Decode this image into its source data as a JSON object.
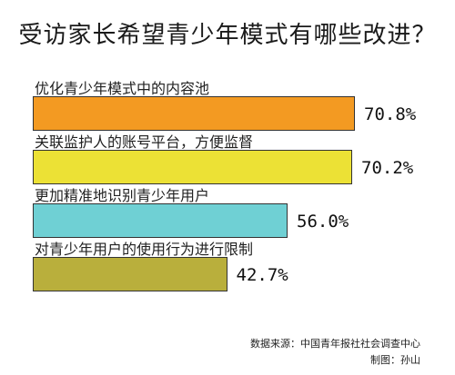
{
  "chart_data": {
    "type": "bar",
    "orientation": "horizontal",
    "title": "受访家长希望青少年模式有哪些改进？",
    "categories": [
      "优化青少年模式中的内容池",
      "关联监护人的账号平台，方便监督",
      "更加精准地识别青少年用户",
      "对青少年用户的使用行为进行限制"
    ],
    "values": [
      70.8,
      70.2,
      56.0,
      42.7
    ],
    "value_labels": [
      "70.8%",
      "70.2%",
      "56.0%",
      "42.7%"
    ],
    "colors": [
      "#f39a22",
      "#ece135",
      "#6fd0d4",
      "#b9af3c"
    ],
    "xlim": [
      0,
      100
    ],
    "grid": false,
    "legend": "none"
  },
  "footer": {
    "source": "数据来源：中国青年报社社会调查中心",
    "author": "制图：孙山"
  }
}
